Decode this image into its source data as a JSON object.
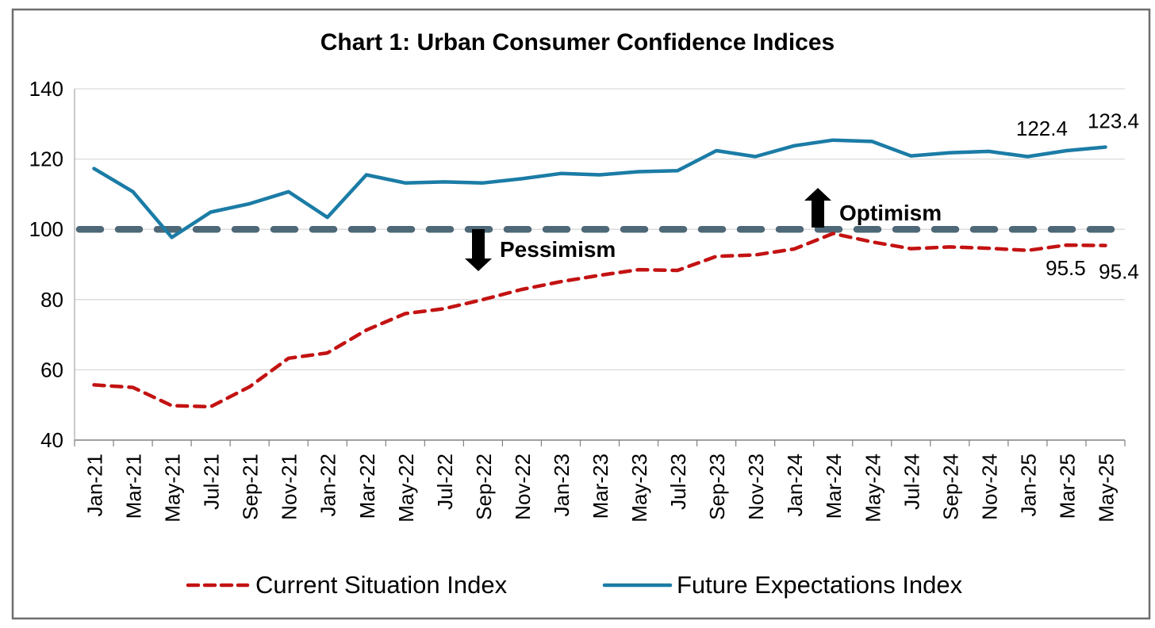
{
  "chart_data": {
    "type": "line",
    "title": "Chart 1: Urban Consumer Confidence Indices",
    "categories": [
      "Jan-21",
      "Mar-21",
      "May-21",
      "Jul-21",
      "Sep-21",
      "Nov-21",
      "Jan-22",
      "Mar-22",
      "May-22",
      "Jul-22",
      "Sep-22",
      "Nov-22",
      "Jan-23",
      "Mar-23",
      "May-23",
      "Jul-23",
      "Sep-23",
      "Nov-23",
      "Jan-24",
      "Mar-24",
      "May-24",
      "Jul-24",
      "Sep-24",
      "Nov-24",
      "Jan-25",
      "Mar-25",
      "May-25"
    ],
    "series": [
      {
        "name": "Current Situation Index",
        "style": "dashed",
        "color": "#C31212",
        "values": [
          55.7,
          55.0,
          49.8,
          49.5,
          55.2,
          63.3,
          64.8,
          71.3,
          76.0,
          77.4,
          80.0,
          82.9,
          85.1,
          86.9,
          88.5,
          88.3,
          92.3,
          92.7,
          94.4,
          98.8,
          96.4,
          94.5,
          95.0,
          94.6,
          94.0,
          95.5,
          95.4
        ]
      },
      {
        "name": "Future Expectations Index",
        "style": "solid",
        "color": "#1B7CA6",
        "values": [
          117.3,
          110.7,
          97.7,
          104.9,
          107.3,
          110.7,
          103.4,
          115.5,
          113.2,
          113.5,
          113.2,
          114.4,
          115.9,
          115.5,
          116.4,
          116.7,
          122.4,
          120.7,
          123.8,
          125.4,
          125.0,
          120.9,
          121.8,
          122.2,
          120.7,
          122.4,
          123.4
        ]
      }
    ],
    "xlabel": "",
    "ylabel": "",
    "ylim": [
      40,
      140
    ],
    "y_ticks": [
      140,
      120,
      100,
      80,
      60,
      40
    ],
    "grid": "horizontal",
    "legend_position": "bottom",
    "reference_line": {
      "value": 100,
      "color": "#4E6877",
      "style": "dashed"
    },
    "point_labels": [
      {
        "series": "Future Expectations Index",
        "category": "Mar-25",
        "text": "122.4"
      },
      {
        "series": "Future Expectations Index",
        "category": "May-25",
        "text": "123.4"
      },
      {
        "series": "Current Situation Index",
        "category": "Mar-25",
        "text": "95.5"
      },
      {
        "series": "Current Situation Index",
        "category": "May-25",
        "text": "95.4"
      }
    ],
    "annotations": [
      {
        "label": "Pessimism",
        "direction": "down"
      },
      {
        "label": "Optimism",
        "direction": "up"
      }
    ]
  },
  "colors": {
    "gridline": "#D9D9D9",
    "axis": "#808080",
    "frame": "#6E6E6E",
    "annotation_arrow": "#000000"
  }
}
